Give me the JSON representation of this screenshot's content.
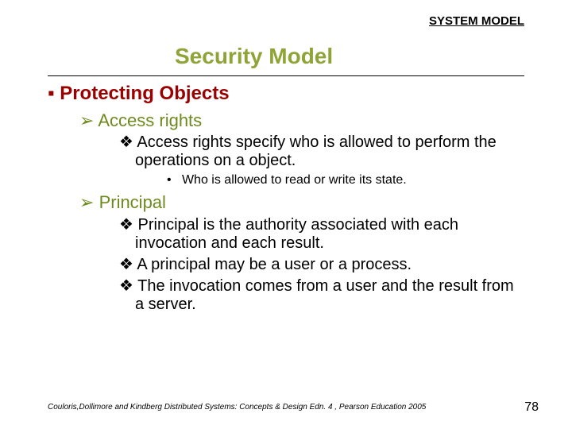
{
  "header": "SYSTEM MODEL",
  "title": "Security Model",
  "colors": {
    "title": "#8fa336",
    "lvl1": "#9a0000",
    "lvl2": "#6f8a1f",
    "lvl3": "#000000",
    "lvl4": "#000000",
    "background": "#ffffff"
  },
  "bullets": {
    "lvl1": "▪",
    "lvl2": "➢",
    "lvl3": "❖",
    "lvl4": "•"
  },
  "fontsizes": {
    "header": 15,
    "title": 28,
    "lvl1": 24,
    "lvl2": 22,
    "lvl3": 20,
    "lvl4": 16,
    "footer": 10,
    "pagenum": 16
  },
  "lvl1_text": "Protecting Objects",
  "sec1_lvl2": "Access rights",
  "sec1_lvl3a": "Access rights specify who is allowed to perform the operations on a object.",
  "sec1_lvl4a": "Who is allowed to read or write its state.",
  "sec2_lvl2": "Principal",
  "sec2_lvl3a": "Principal is the authority associated with each invocation and each result.",
  "sec2_lvl3b": "A principal may be a user or a process.",
  "sec2_lvl3c": "The invocation comes from a user and the result from a server.",
  "footer": "Couloris,Dollimore and Kindberg  Distributed Systems: Concepts & Design  Edn. 4 , Pearson Education 2005",
  "page": "78"
}
